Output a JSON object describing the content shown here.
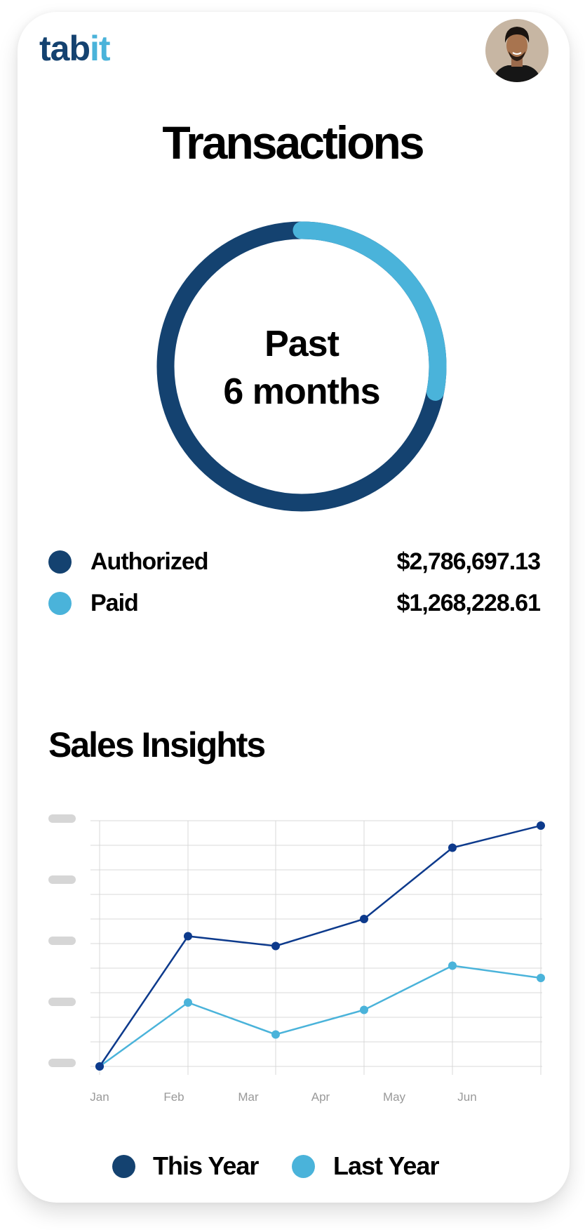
{
  "header": {
    "logo_main": "tab",
    "logo_accent": "it",
    "avatar": "user-avatar"
  },
  "transactions": {
    "title": "Transactions",
    "center_line1": "Past",
    "center_line2": "6 months",
    "paid_arc_fraction": 0.28,
    "items": [
      {
        "label": "Authorized",
        "value": "$2,786,697.13",
        "color": "#144270"
      },
      {
        "label": "Paid",
        "value": "$1,268,228.61",
        "color": "#4AB3DA"
      }
    ]
  },
  "sales": {
    "title": "Sales Insights"
  },
  "chart_data": {
    "type": "line",
    "categories": [
      "Jan",
      "Feb",
      "Mar",
      "Apr",
      "May",
      "Jun"
    ],
    "ylim": [
      0,
      10
    ],
    "y_tick_labels_hidden": true,
    "grid": true,
    "legend": "bottom",
    "series": [
      {
        "name": "This Year",
        "values": [
          0,
          5.3,
          4.9,
          6.0,
          8.9,
          9.8
        ],
        "color": "#0D3A8C"
      },
      {
        "name": "Last Year",
        "values": [
          0,
          2.6,
          1.3,
          2.3,
          4.1,
          3.6
        ],
        "color": "#4AB3DA"
      }
    ]
  },
  "legend_colors": {
    "this_year": "#144270",
    "last_year": "#4AB3DA"
  }
}
